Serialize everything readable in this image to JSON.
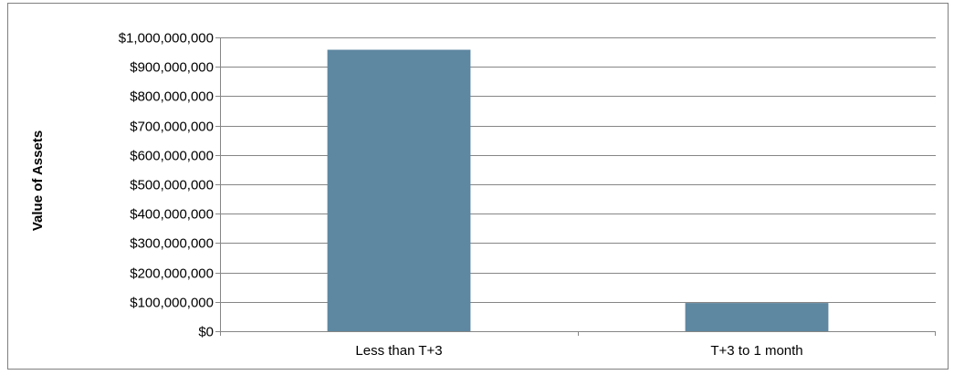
{
  "chart_data": {
    "type": "bar",
    "title": "",
    "xlabel": "",
    "ylabel": "Value of Assets",
    "categories": [
      "Less than T+3",
      "T+3 to 1 month"
    ],
    "values": [
      958000000,
      96000000
    ],
    "ylim": [
      0,
      1000000000
    ],
    "yticks": [
      0,
      100000000,
      200000000,
      300000000,
      400000000,
      500000000,
      600000000,
      700000000,
      800000000,
      900000000,
      1000000000
    ],
    "ytick_labels": [
      "$0",
      "$100,000,000",
      "$200,000,000",
      "$300,000,000",
      "$400,000,000",
      "$500,000,000",
      "$600,000,000",
      "$700,000,000",
      "$800,000,000",
      "$900,000,000",
      "$1,000,000,000"
    ],
    "bar_color": "#5e87a1",
    "grid": true,
    "grid_color": "#868686",
    "legend": false
  }
}
